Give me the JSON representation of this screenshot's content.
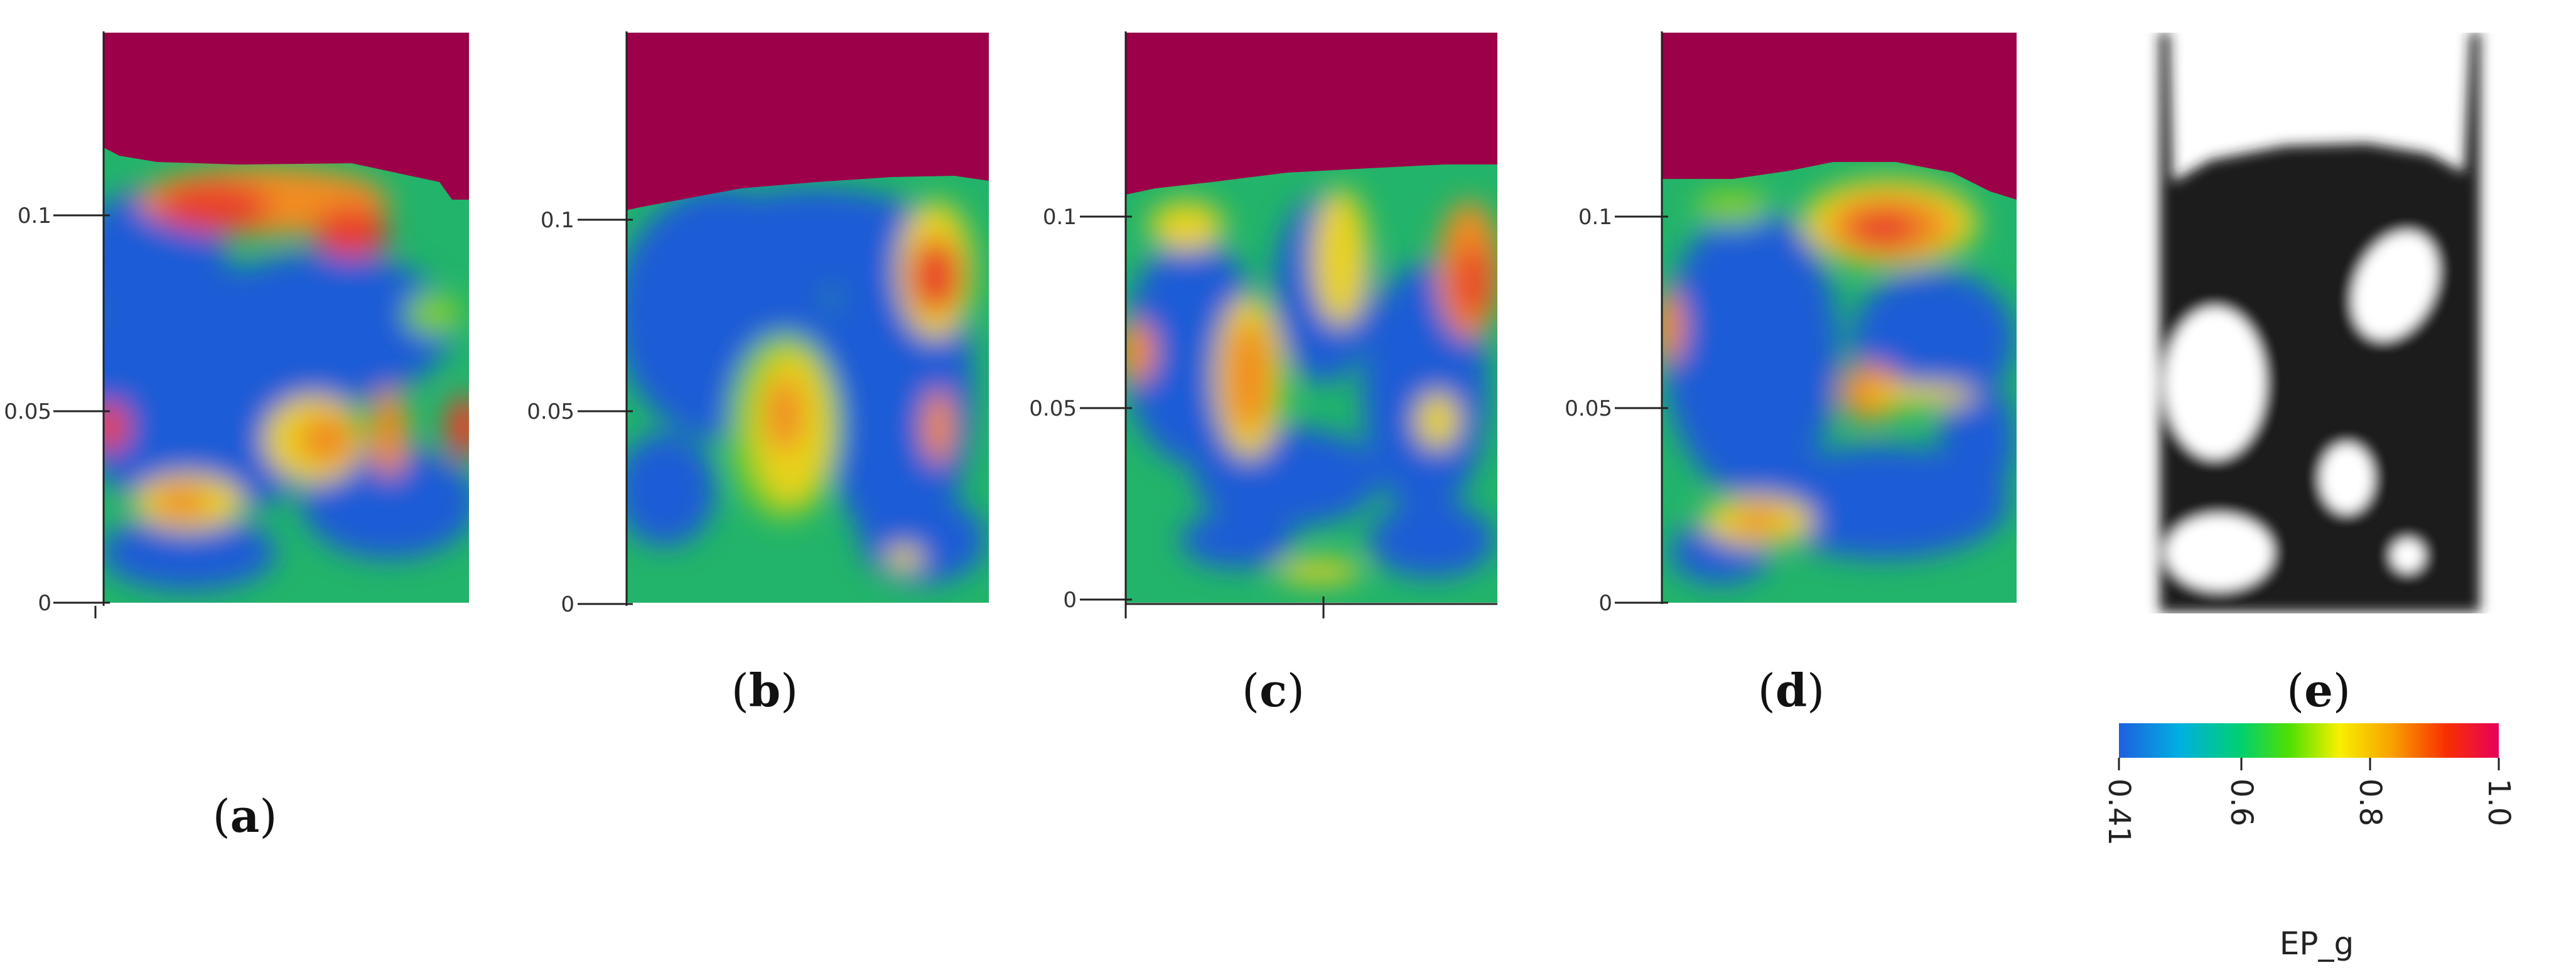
{
  "panels": [
    {
      "id": "a",
      "label_open": "(",
      "label_letter": "a",
      "label_close": ")",
      "ticks": [
        "0.1",
        "0.05",
        "0"
      ]
    },
    {
      "id": "b",
      "label_open": "(",
      "label_letter": "b",
      "label_close": ")",
      "ticks": [
        "0.1",
        "0.05",
        "0"
      ]
    },
    {
      "id": "c",
      "label_open": "(",
      "label_letter": "c",
      "label_close": ")",
      "ticks": [
        "0.1",
        "0.05",
        "0"
      ]
    },
    {
      "id": "d",
      "label_open": "(",
      "label_letter": "d",
      "label_close": ")",
      "ticks": [
        "0.1",
        "0.05",
        "0"
      ]
    },
    {
      "id": "e",
      "label_open": "(",
      "label_letter": "e",
      "label_close": ")"
    }
  ],
  "colorbar": {
    "title": "EP_g",
    "ticks": [
      "0.41",
      "0.6",
      "0.8",
      "1.0"
    ],
    "tick_values": [
      0.41,
      0.6,
      0.8,
      1.0
    ],
    "range": [
      0.41,
      1.0
    ],
    "colors": [
      "#1f5fe0",
      "#00b0e0",
      "#00d070",
      "#50e000",
      "#f8f000",
      "#f8a000",
      "#f83000",
      "#e8005a"
    ]
  },
  "colors": {
    "freeboard": "#9c0048",
    "dense": "#1e5cd6",
    "mid": "#22b46a",
    "light_green": "#7ccc2a",
    "yellow": "#e8d21c",
    "orange": "#f08c22",
    "red": "#e8402a",
    "xray_bg": "#ffffff",
    "xray_dense": "#1a1a1a",
    "xray_bubble": "#ffffff"
  }
}
